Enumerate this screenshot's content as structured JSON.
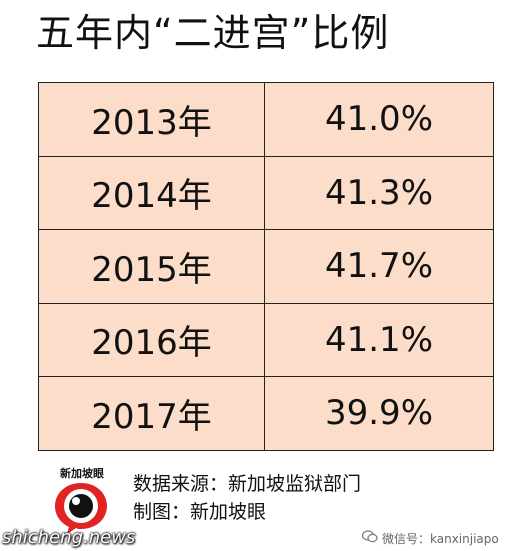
{
  "chart_data": {
    "type": "table",
    "title": "五年内“二进宫”比例",
    "rows": [
      {
        "year": "2013年",
        "value": "41.0%"
      },
      {
        "year": "2014年",
        "value": "41.3%"
      },
      {
        "year": "2015年",
        "value": "41.7%"
      },
      {
        "year": "2016年",
        "value": "41.1%"
      },
      {
        "year": "2017年",
        "value": "39.9%"
      }
    ],
    "cell_color": "#fbddc9"
  },
  "footer": {
    "logo_text": "新加坡眼",
    "source": "数据来源：新加坡监狱部门",
    "credit": "制图：新加坡眼"
  },
  "watermark": {
    "brand": "shicheng.news",
    "wechat": "微信号：kanxinjiapo"
  }
}
